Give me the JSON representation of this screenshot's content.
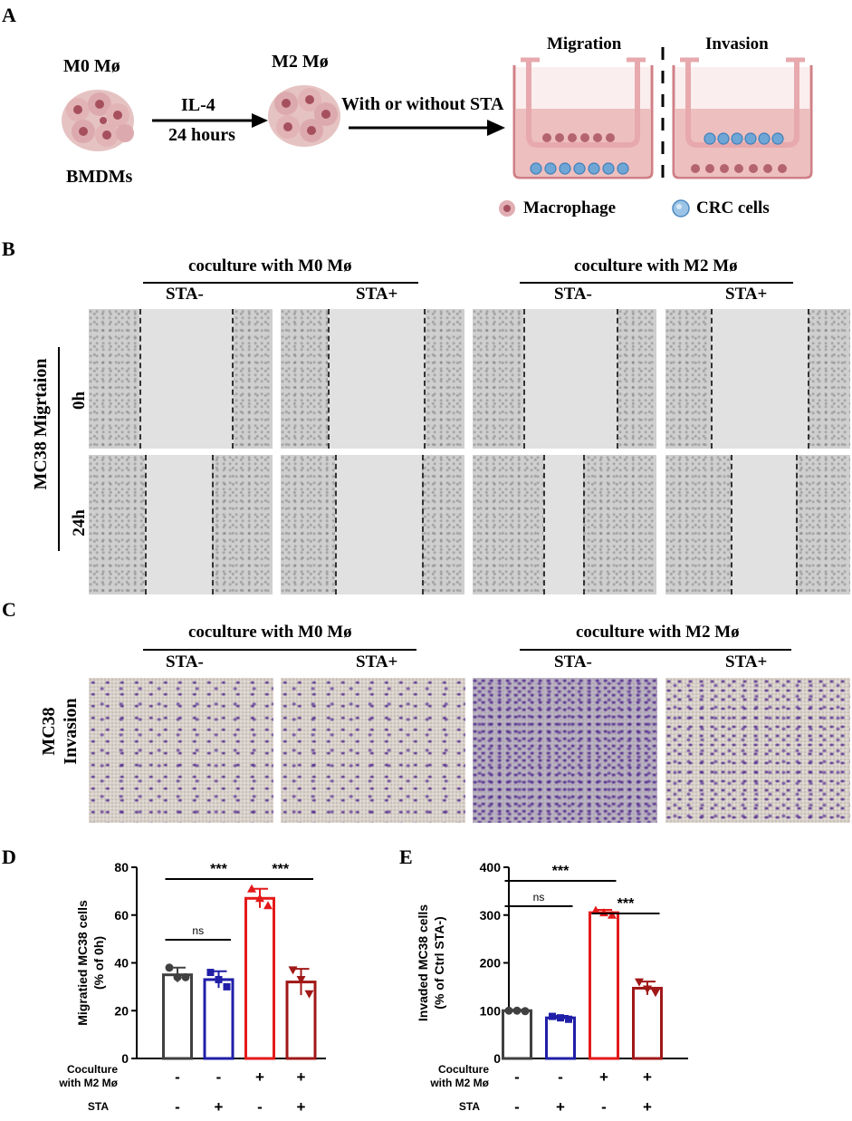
{
  "panel_labels": {
    "a": "A",
    "b": "B",
    "c": "C",
    "d": "D",
    "e": "E"
  },
  "schematic": {
    "m0_label": "M0 Mø",
    "m2_label": "M2 Mø",
    "bmdms_label": "BMDMs",
    "il4_label": "IL-4",
    "hours_label": "24 hours",
    "sta_arrow_label": "With or without STA",
    "migration_label": "Migration",
    "invasion_label": "Invasion",
    "legend_macrophage": "Macrophage",
    "legend_crc": "CRC cells",
    "colors": {
      "well_pink": "#e9b7b7",
      "medium": "#d98f92",
      "macrophage": "#b4646e",
      "crc": "#6fa6d6"
    }
  },
  "migration_panel": {
    "group_m0": "coculture with M0 Mø",
    "group_m2": "coculture with M2 Mø",
    "sta_minus": "STA-",
    "sta_plus": "STA+",
    "row_label": "MC38 Migrtaion",
    "time_0h": "0h",
    "time_24h": "24h"
  },
  "invasion_panel": {
    "group_m0": "coculture with M0 Mø",
    "group_m2": "coculture with M2 Mø",
    "sta_minus": "STA-",
    "sta_plus": "STA+",
    "row_label_1": "MC38",
    "row_label_2": "Invasion"
  },
  "chart_data": [
    {
      "type": "bar",
      "panel": "D",
      "ylabel": "Migratied MC38 cells (% of 0h)",
      "ylabel_line1": "Migratied MC38 cells",
      "ylabel_line2": "(% of 0h)",
      "ylim": [
        0,
        80
      ],
      "yticks": [
        0,
        20,
        40,
        60,
        80
      ],
      "row_label_1": "Coculture",
      "row_label_2": "with M2 Mø",
      "row_label_3": "STA",
      "groups": [
        {
          "coculture": "-",
          "sta": "-",
          "value": 35,
          "sd": 3,
          "points": [
            38,
            34,
            34
          ],
          "color": "#404040"
        },
        {
          "coculture": "-",
          "sta": "+",
          "value": 33,
          "sd": 3.5,
          "points": [
            36,
            33,
            30
          ],
          "color": "#1f1fa8"
        },
        {
          "coculture": "+",
          "sta": "-",
          "value": 67,
          "sd": 4,
          "points": [
            71,
            67,
            64
          ],
          "color": "#e41a1a"
        },
        {
          "coculture": "+",
          "sta": "+",
          "value": 32,
          "sd": 5.5,
          "points": [
            37,
            33,
            27
          ],
          "color": "#a01818"
        }
      ],
      "comparisons": [
        {
          "from": 0,
          "to": 1,
          "label": "ns"
        },
        {
          "from": 0,
          "to": 2,
          "label": "***"
        },
        {
          "from": 2,
          "to": 3,
          "label": "***"
        }
      ]
    },
    {
      "type": "bar",
      "panel": "E",
      "ylabel": "Invaded MC38 cells (% of Ctrl STA-)",
      "ylabel_line1": "Invaded MC38 cells",
      "ylabel_line2": "(% of Ctrl STA-)",
      "ylim": [
        0,
        400
      ],
      "yticks": [
        0,
        100,
        200,
        300,
        400
      ],
      "row_label_1": "Coculture",
      "row_label_2": "with M2 Mø",
      "row_label_3": "STA",
      "groups": [
        {
          "coculture": "-",
          "sta": "-",
          "value": 100,
          "sd": 2,
          "points": [
            100,
            100,
            99
          ],
          "color": "#404040"
        },
        {
          "coculture": "-",
          "sta": "+",
          "value": 85,
          "sd": 4,
          "points": [
            88,
            85,
            82
          ],
          "color": "#1f1fa8"
        },
        {
          "coculture": "+",
          "sta": "-",
          "value": 305,
          "sd": 6,
          "points": [
            310,
            305,
            300
          ],
          "color": "#e41a1a"
        },
        {
          "coculture": "+",
          "sta": "+",
          "value": 147,
          "sd": 14,
          "points": [
            160,
            145,
            138
          ],
          "color": "#a01818"
        }
      ],
      "comparisons": [
        {
          "from": 0,
          "to": 1,
          "label": "ns"
        },
        {
          "from": 0,
          "to": 2,
          "label": "***"
        },
        {
          "from": 2,
          "to": 3,
          "label": "***"
        }
      ]
    }
  ]
}
